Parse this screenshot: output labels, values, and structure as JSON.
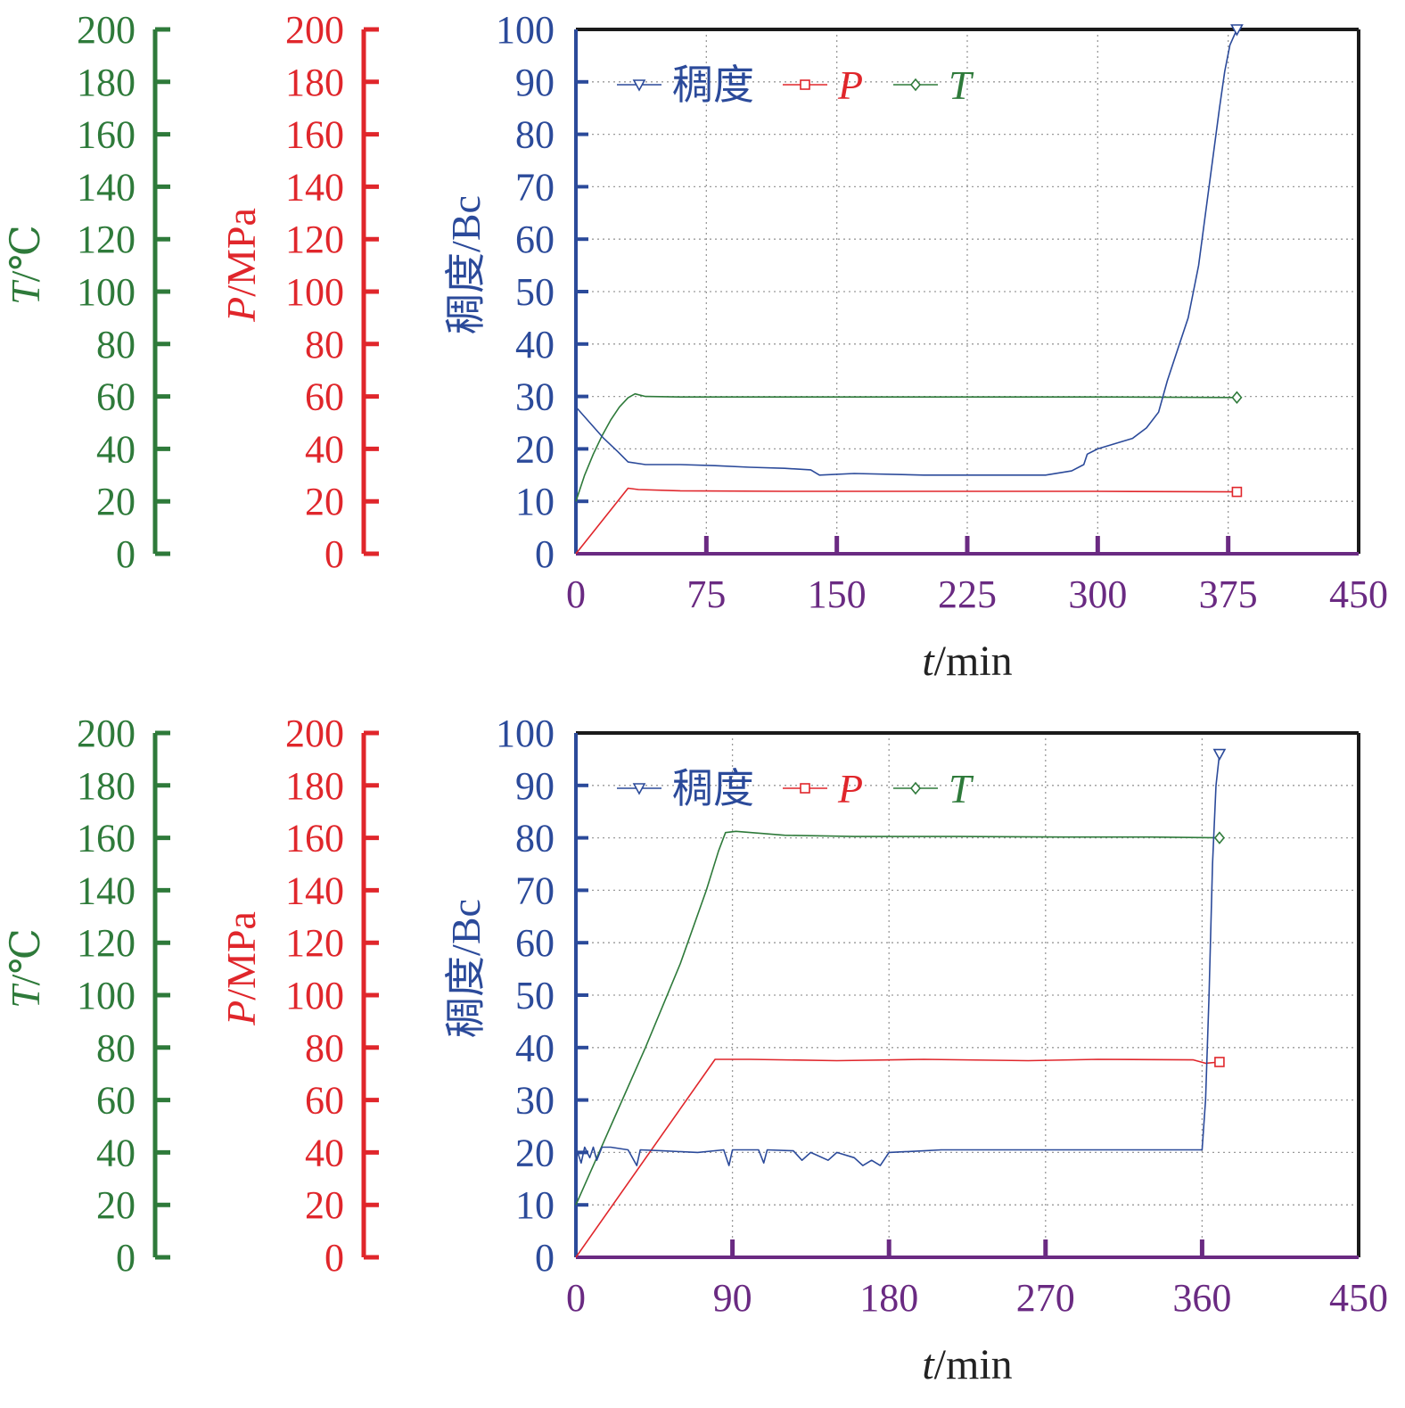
{
  "colors": {
    "consistency": "#2b4a9a",
    "pressure": "#e0262b",
    "temperature": "#2e7a3a",
    "x_axis": "#6a2a82",
    "frame": "#1a1a1a",
    "grid": "#9a9a9a"
  },
  "chart_data": [
    {
      "type": "line",
      "x_axis": {
        "label_italic": "t",
        "label_rest": "/min",
        "range": [
          0,
          450
        ],
        "ticks": [
          0,
          75,
          150,
          225,
          300,
          375,
          450
        ]
      },
      "y_axes": {
        "consistency": {
          "label_main": "稠度",
          "label_unit": "/Bc",
          "range": [
            0,
            100
          ],
          "ticks": [
            0,
            10,
            20,
            30,
            40,
            50,
            60,
            70,
            80,
            90,
            100
          ]
        },
        "pressure": {
          "label_italic": "P",
          "label_rest": "/MPa",
          "range": [
            0,
            200
          ],
          "ticks": [
            0,
            20,
            40,
            60,
            80,
            100,
            120,
            140,
            160,
            180,
            200
          ]
        },
        "temperature": {
          "label_italic": "T",
          "label_rest": "/℃",
          "range": [
            0,
            200
          ],
          "ticks": [
            0,
            20,
            40,
            60,
            80,
            100,
            120,
            140,
            160,
            180,
            200
          ]
        }
      },
      "grid": true,
      "legend": {
        "placement": "top-left",
        "entries": [
          "稠度",
          "P",
          "T"
        ]
      },
      "series": [
        {
          "name": "稠度",
          "axis": "consistency",
          "points": [
            [
              0,
              28
            ],
            [
              8,
              25
            ],
            [
              16,
              22
            ],
            [
              24,
              19.5
            ],
            [
              30,
              17.5
            ],
            [
              40,
              17
            ],
            [
              60,
              17
            ],
            [
              80,
              16.8
            ],
            [
              100,
              16.5
            ],
            [
              120,
              16.3
            ],
            [
              135,
              16
            ],
            [
              140,
              15
            ],
            [
              160,
              15.3
            ],
            [
              200,
              15
            ],
            [
              240,
              15
            ],
            [
              270,
              15
            ],
            [
              285,
              15.8
            ],
            [
              292,
              17
            ],
            [
              294,
              19
            ],
            [
              300,
              20
            ],
            [
              310,
              21
            ],
            [
              320,
              22
            ],
            [
              328,
              24
            ],
            [
              335,
              27
            ],
            [
              340,
              33
            ],
            [
              345,
              38
            ],
            [
              352,
              45
            ],
            [
              358,
              55
            ],
            [
              362,
              65
            ],
            [
              366,
              75
            ],
            [
              370,
              85
            ],
            [
              373,
              92
            ],
            [
              376,
              97
            ],
            [
              380,
              100
            ]
          ]
        },
        {
          "name": "P",
          "axis": "pressure",
          "points": [
            [
              0,
              0
            ],
            [
              30,
              25
            ],
            [
              36,
              24.5
            ],
            [
              60,
              24
            ],
            [
              120,
              23.8
            ],
            [
              200,
              23.8
            ],
            [
              300,
              23.8
            ],
            [
              380,
              23.6
            ]
          ]
        },
        {
          "name": "T",
          "axis": "temperature",
          "points": [
            [
              0,
              20
            ],
            [
              5,
              30
            ],
            [
              10,
              38
            ],
            [
              15,
              45
            ],
            [
              20,
              51
            ],
            [
              25,
              56
            ],
            [
              30,
              59.5
            ],
            [
              34,
              61
            ],
            [
              40,
              60
            ],
            [
              60,
              59.8
            ],
            [
              120,
              59.8
            ],
            [
              200,
              59.8
            ],
            [
              300,
              59.8
            ],
            [
              380,
              59.6
            ]
          ]
        }
      ]
    },
    {
      "type": "line",
      "x_axis": {
        "label_italic": "t",
        "label_rest": "/min",
        "range": [
          0,
          450
        ],
        "ticks": [
          0,
          90,
          180,
          270,
          360,
          450
        ]
      },
      "y_axes": {
        "consistency": {
          "label_main": "稠度",
          "label_unit": "/Bc",
          "range": [
            0,
            100
          ],
          "ticks": [
            0,
            10,
            20,
            30,
            40,
            50,
            60,
            70,
            80,
            90,
            100
          ]
        },
        "pressure": {
          "label_italic": "P",
          "label_rest": "/MPa",
          "range": [
            0,
            200
          ],
          "ticks": [
            0,
            20,
            40,
            60,
            80,
            100,
            120,
            140,
            160,
            180,
            200
          ]
        },
        "temperature": {
          "label_italic": "T",
          "label_rest": "/℃",
          "range": [
            0,
            200
          ],
          "ticks": [
            0,
            20,
            40,
            60,
            80,
            100,
            120,
            140,
            160,
            180,
            200
          ]
        }
      },
      "grid": true,
      "legend": {
        "placement": "top-left",
        "entries": [
          "稠度",
          "P",
          "T"
        ]
      },
      "series": [
        {
          "name": "稠度",
          "axis": "consistency",
          "points": [
            [
              0,
              21
            ],
            [
              3,
              18
            ],
            [
              5,
              21
            ],
            [
              8,
              19
            ],
            [
              10,
              21
            ],
            [
              12,
              18.5
            ],
            [
              15,
              21
            ],
            [
              20,
              21
            ],
            [
              30,
              20.5
            ],
            [
              35,
              17.5
            ],
            [
              37,
              20.5
            ],
            [
              50,
              20.3
            ],
            [
              70,
              20
            ],
            [
              85,
              20.5
            ],
            [
              88,
              17.5
            ],
            [
              90,
              20.5
            ],
            [
              105,
              20.5
            ],
            [
              108,
              18
            ],
            [
              110,
              20.5
            ],
            [
              125,
              20.3
            ],
            [
              130,
              18.5
            ],
            [
              135,
              20
            ],
            [
              145,
              18.5
            ],
            [
              150,
              20
            ],
            [
              160,
              19
            ],
            [
              165,
              17.5
            ],
            [
              170,
              18.5
            ],
            [
              175,
              17.5
            ],
            [
              180,
              20
            ],
            [
              200,
              20.3
            ],
            [
              210,
              20.5
            ],
            [
              270,
              20.5
            ],
            [
              320,
              20.5
            ],
            [
              360,
              20.5
            ],
            [
              362,
              30
            ],
            [
              364,
              50
            ],
            [
              366,
              75
            ],
            [
              368,
              90
            ],
            [
              370,
              96
            ]
          ]
        },
        {
          "name": "P",
          "axis": "pressure",
          "points": [
            [
              0,
              0
            ],
            [
              80,
              75.5
            ],
            [
              100,
              75.5
            ],
            [
              150,
              75
            ],
            [
              200,
              75.5
            ],
            [
              260,
              75
            ],
            [
              300,
              75.5
            ],
            [
              355,
              75.3
            ],
            [
              362,
              74
            ],
            [
              370,
              74.5
            ]
          ]
        },
        {
          "name": "T",
          "axis": "temperature",
          "points": [
            [
              0,
              20
            ],
            [
              20,
              50
            ],
            [
              40,
              80
            ],
            [
              60,
              112
            ],
            [
              75,
              140
            ],
            [
              82,
              155
            ],
            [
              86,
              162
            ],
            [
              92,
              162.5
            ],
            [
              120,
              161
            ],
            [
              160,
              160.5
            ],
            [
              220,
              160.5
            ],
            [
              280,
              160.3
            ],
            [
              330,
              160.3
            ],
            [
              370,
              160
            ]
          ]
        }
      ]
    }
  ]
}
